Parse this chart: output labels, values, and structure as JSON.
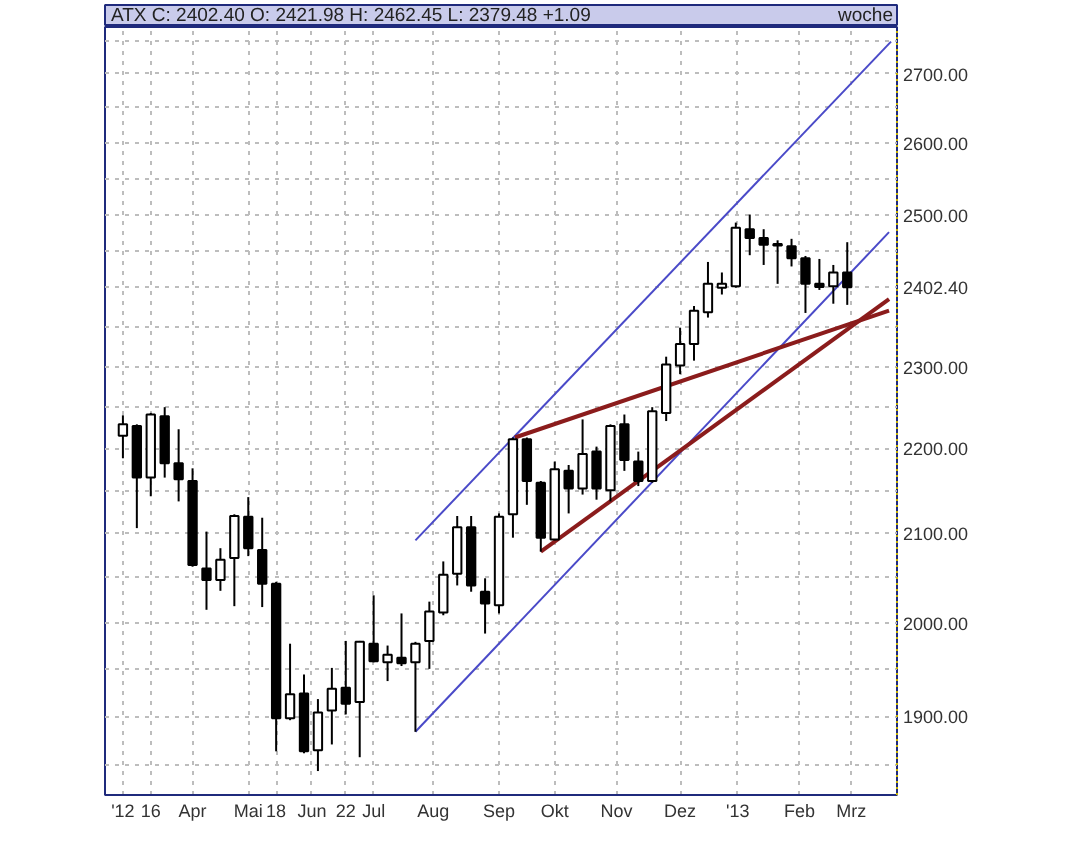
{
  "chart_data": {
    "type": "candlestick",
    "title": "ATX C: 2402.40 O: 2421.98 H: 2462.45 L: 2379.48 +1.09",
    "subtitle": "woche",
    "x": [
      "2012-02-27",
      "2012-03-05",
      "2012-03-12",
      "2012-03-19",
      "2012-03-26",
      "2012-04-02",
      "2012-04-09",
      "2012-04-16",
      "2012-04-23",
      "2012-04-30",
      "2012-05-07",
      "2012-05-14",
      "2012-05-21",
      "2012-05-28",
      "2012-06-04",
      "2012-06-11",
      "2012-06-18",
      "2012-06-25",
      "2012-07-02",
      "2012-07-09",
      "2012-07-16",
      "2012-07-23",
      "2012-07-30",
      "2012-08-06",
      "2012-08-13",
      "2012-08-20",
      "2012-08-27",
      "2012-09-03",
      "2012-09-10",
      "2012-09-17",
      "2012-09-24",
      "2012-10-01",
      "2012-10-08",
      "2012-10-15",
      "2012-10-22",
      "2012-10-29",
      "2012-11-05",
      "2012-11-12",
      "2012-11-19",
      "2012-11-26",
      "2012-12-03",
      "2012-12-10",
      "2012-12-17",
      "2012-12-24",
      "2012-12-31",
      "2013-01-07",
      "2013-01-14",
      "2013-01-21",
      "2013-01-28",
      "2013-02-04",
      "2013-02-11",
      "2013-02-18",
      "2013-02-25"
    ],
    "ohlc": [
      [
        2215,
        2240,
        2188,
        2229
      ],
      [
        2227,
        2229,
        2106,
        2165
      ],
      [
        2165,
        2243,
        2143,
        2241
      ],
      [
        2239,
        2250,
        2165,
        2182
      ],
      [
        2182,
        2223,
        2137,
        2163
      ],
      [
        2161,
        2176,
        2062,
        2064
      ],
      [
        2060,
        2102,
        2014,
        2047
      ],
      [
        2047,
        2083,
        2035,
        2070
      ],
      [
        2072,
        2122,
        2018,
        2120
      ],
      [
        2119,
        2142,
        2074,
        2083
      ],
      [
        2081,
        2118,
        2017,
        2043
      ],
      [
        2043,
        2045,
        1864,
        1898
      ],
      [
        1898,
        1977,
        1896,
        1923
      ],
      [
        1924,
        1944,
        1862,
        1864
      ],
      [
        1865,
        1918,
        1844,
        1904
      ],
      [
        1906,
        1951,
        1871,
        1929
      ],
      [
        1930,
        1980,
        1902,
        1913
      ],
      [
        1915,
        1980,
        1858,
        1979
      ],
      [
        1977,
        2030,
        1957,
        1958
      ],
      [
        1957,
        1975,
        1937,
        1965
      ],
      [
        1962,
        2010,
        1953,
        1956
      ],
      [
        1957,
        1979,
        1884,
        1977
      ],
      [
        1980,
        2023,
        1950,
        2012
      ],
      [
        2011,
        2068,
        2008,
        2053
      ],
      [
        2054,
        2120,
        2041,
        2107
      ],
      [
        2107,
        2120,
        2034,
        2041
      ],
      [
        2034,
        2049,
        1988,
        2021
      ],
      [
        2019,
        2123,
        2010,
        2119
      ],
      [
        2122,
        2213,
        2095,
        2211
      ],
      [
        2211,
        2213,
        2133,
        2161
      ],
      [
        2159,
        2161,
        2079,
        2095
      ],
      [
        2093,
        2184,
        2092,
        2175
      ],
      [
        2173,
        2180,
        2123,
        2152
      ],
      [
        2152,
        2235,
        2145,
        2193
      ],
      [
        2196,
        2202,
        2139,
        2152
      ],
      [
        2150,
        2229,
        2137,
        2227
      ],
      [
        2229,
        2241,
        2173,
        2186
      ],
      [
        2184,
        2196,
        2155,
        2161
      ],
      [
        2161,
        2250,
        2159,
        2245
      ],
      [
        2243,
        2313,
        2233,
        2303
      ],
      [
        2302,
        2350,
        2291,
        2329
      ],
      [
        2329,
        2378,
        2308,
        2372
      ],
      [
        2370,
        2436,
        2363,
        2407
      ],
      [
        2402,
        2422,
        2393,
        2407
      ],
      [
        2404,
        2489,
        2402,
        2482
      ],
      [
        2480,
        2500,
        2445,
        2468
      ],
      [
        2468,
        2480,
        2432,
        2459
      ],
      [
        2460,
        2465,
        2407,
        2458
      ],
      [
        2457,
        2467,
        2430,
        2441
      ],
      [
        2441,
        2444,
        2369,
        2407
      ],
      [
        2407,
        2440,
        2399,
        2403
      ],
      [
        2404,
        2432,
        2381,
        2422
      ],
      [
        2421.98,
        2462.45,
        2379.48,
        2402.4
      ]
    ],
    "series": [
      {
        "type": "line",
        "color": "#4a4ac8",
        "x": [
          "2012-07-23",
          "2013-03-19"
        ],
        "values": [
          2092,
          2748
        ]
      },
      {
        "type": "line",
        "color": "#4a4ac8",
        "x": [
          "2012-07-23",
          "2013-03-18"
        ],
        "values": [
          1884,
          2476
        ]
      },
      {
        "type": "line",
        "color": "#8b1c1c",
        "x": [
          "2012-09-11",
          "2013-03-18"
        ],
        "values": [
          2213,
          2372
        ]
      },
      {
        "type": "line",
        "color": "#8b1c1c",
        "x": [
          "2012-09-24",
          "2013-03-18"
        ],
        "values": [
          2079,
          2387
        ]
      }
    ],
    "log": true,
    "xlim": [
      "2012-02-18",
      "2013-03-22"
    ],
    "xticks": [
      {
        "value": "2012-02-27",
        "label": "'12"
      },
      {
        "value": "2012-03-12",
        "label": "16"
      },
      {
        "value": "2012-04-02",
        "label": "Apr"
      },
      {
        "value": "2012-04-30",
        "label": "Mai"
      },
      {
        "value": "2012-05-14",
        "label": "18"
      },
      {
        "value": "2012-06-01",
        "label": "Jun"
      },
      {
        "value": "2012-06-18",
        "label": "22"
      },
      {
        "value": "2012-07-02",
        "label": "Jul"
      },
      {
        "value": "2012-08-01",
        "label": "Aug"
      },
      {
        "value": "2012-09-03",
        "label": "Sep"
      },
      {
        "value": "2012-10-01",
        "label": "Okt"
      },
      {
        "value": "2012-11-01",
        "label": "Nov"
      },
      {
        "value": "2012-12-03",
        "label": "Dez"
      },
      {
        "value": "2013-01-01",
        "label": "'13"
      },
      {
        "value": "2013-02-01",
        "label": "Feb"
      },
      {
        "value": "2013-02-27",
        "label": "Mrz"
      }
    ],
    "ylim": [
      1820,
      2770
    ],
    "yticks": [
      {
        "value": 1850,
        "label": null
      },
      {
        "value": 1900,
        "label": "1900.00"
      },
      {
        "value": 1950,
        "label": null
      },
      {
        "value": 2000,
        "label": "2000.00"
      },
      {
        "value": 2050,
        "label": null
      },
      {
        "value": 2100,
        "label": "2100.00"
      },
      {
        "value": 2150,
        "label": null
      },
      {
        "value": 2200,
        "label": "2200.00"
      },
      {
        "value": 2250,
        "label": null
      },
      {
        "value": 2300,
        "label": "2300.00"
      },
      {
        "value": 2350,
        "label": null
      },
      {
        "value": 2402.4,
        "label": "2402.40"
      },
      {
        "value": 2450,
        "label": null
      },
      {
        "value": 2500,
        "label": "2500.00"
      },
      {
        "value": 2550,
        "label": null
      },
      {
        "value": 2600,
        "label": "2600.00"
      },
      {
        "value": 2650,
        "label": null
      },
      {
        "value": 2700,
        "label": "2700.00"
      },
      {
        "value": 2750,
        "label": null
      }
    ],
    "grid": true
  }
}
